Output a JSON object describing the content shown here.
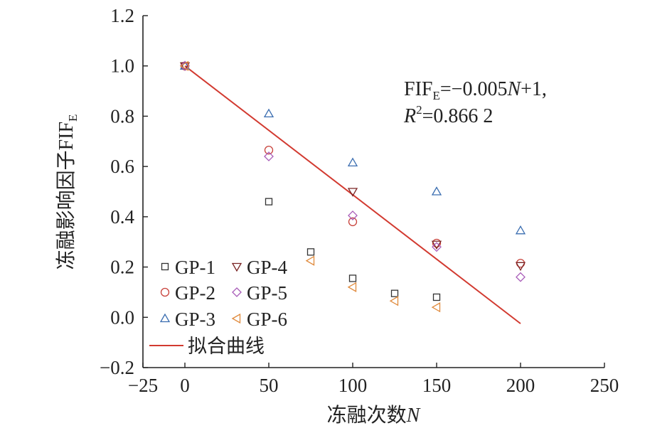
{
  "chart_data": {
    "type": "scatter",
    "xlabel": "冻融次数",
    "xlabel_var": "N",
    "ylabel": "冻融影响因子FIF",
    "ylabel_sub": "E",
    "xlim": [
      -25,
      250
    ],
    "ylim": [
      -0.2,
      1.2
    ],
    "xticks": [
      -25,
      0,
      50,
      100,
      150,
      200,
      250
    ],
    "xtick_labels": [
      "−25",
      "0",
      "50",
      "100",
      "150",
      "200",
      "250"
    ],
    "yticks": [
      -0.2,
      0.0,
      0.2,
      0.4,
      0.6,
      0.8,
      1.0,
      1.2
    ],
    "ytick_labels": [
      "−0.2",
      "0.0",
      "0.2",
      "0.4",
      "0.6",
      "0.8",
      "1.0",
      "1.2"
    ],
    "grid": false,
    "legend_position": "bottom-left",
    "series": [
      {
        "name": "GP-1",
        "marker": "square",
        "color": "#333333",
        "x": [
          0,
          50,
          75,
          100,
          125,
          150
        ],
        "y": [
          1.0,
          0.46,
          0.26,
          0.155,
          0.095,
          0.08
        ]
      },
      {
        "name": "GP-2",
        "marker": "circle",
        "color": "#c8413a",
        "x": [
          0,
          50,
          100,
          150,
          200
        ],
        "y": [
          1.0,
          0.665,
          0.38,
          0.295,
          0.215
        ]
      },
      {
        "name": "GP-3",
        "marker": "triangle-up",
        "color": "#3a6db0",
        "x": [
          0,
          50,
          100,
          150,
          200
        ],
        "y": [
          1.0,
          0.81,
          0.615,
          0.5,
          0.345
        ]
      },
      {
        "name": "GP-4",
        "marker": "triangle-down",
        "color": "#7a2424",
        "x": [
          0,
          100,
          150,
          200
        ],
        "y": [
          1.0,
          0.5,
          0.29,
          0.205
        ]
      },
      {
        "name": "GP-5",
        "marker": "diamond",
        "color": "#a85cb8",
        "x": [
          0,
          50,
          100,
          150,
          200
        ],
        "y": [
          1.0,
          0.64,
          0.405,
          0.28,
          0.16
        ]
      },
      {
        "name": "GP-6",
        "marker": "triangle-left",
        "color": "#e08a3c",
        "x": [
          0,
          75,
          100,
          125,
          150
        ],
        "y": [
          1.0,
          0.225,
          0.12,
          0.065,
          0.04
        ]
      }
    ],
    "fit": {
      "name": "拟合曲线",
      "color": "#d23a30",
      "x": [
        0,
        200
      ],
      "y": [
        1.0,
        -0.025
      ]
    },
    "annotation": {
      "line1_prefix": "FIF",
      "line1_sub": "E",
      "line1_mid": "=−0.005",
      "line1_var": "N",
      "line1_suffix": "+1,",
      "line2_var": "R",
      "line2_sup": "2",
      "line2_suffix": "=0.866 2"
    }
  }
}
